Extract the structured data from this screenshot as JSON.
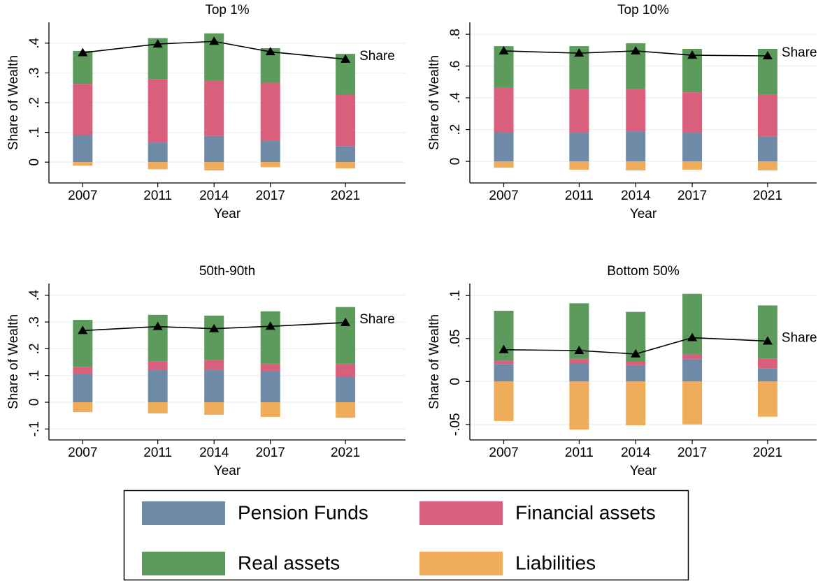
{
  "chart_data": [
    {
      "type": "bar",
      "stacked": true,
      "title": "Top 1%",
      "xlabel": "Year",
      "ylabel": "Share of Wealth",
      "x": [
        2007,
        2011,
        2014,
        2017,
        2021
      ],
      "xlim": [
        2005.2,
        2024.2
      ],
      "xticks": [
        2007,
        2011,
        2014,
        2017,
        2021
      ],
      "ylim": [
        -0.07,
        0.47
      ],
      "yticks": [
        0,
        {
          "value": 0.1,
          "label": ".1"
        },
        {
          "value": 0.2,
          "label": ".2"
        },
        {
          "value": 0.3,
          "label": ".3"
        },
        {
          "value": 0.4,
          "label": ".4"
        }
      ],
      "grid": true,
      "series": [
        {
          "name": "Pension Funds",
          "color": "#6e8aa7",
          "values": [
            0.092,
            0.066,
            0.088,
            0.073,
            0.054
          ]
        },
        {
          "name": "Financial assets",
          "color": "#da5f7d",
          "values": [
            0.171,
            0.213,
            0.187,
            0.194,
            0.173
          ]
        },
        {
          "name": "Real assets",
          "color": "#5c9b5c",
          "values": [
            0.111,
            0.138,
            0.158,
            0.116,
            0.137
          ]
        },
        {
          "name": "Liabilities",
          "color": "#efad5c",
          "values": [
            -0.012,
            -0.024,
            -0.028,
            -0.017,
            -0.021
          ]
        },
        {
          "name": "Share",
          "type": "line",
          "color": "#000000",
          "values": [
            0.368,
            0.397,
            0.406,
            0.371,
            0.346
          ]
        }
      ]
    },
    {
      "type": "bar",
      "stacked": true,
      "title": "Top 10%",
      "xlabel": "Year",
      "ylabel": "Share of Wealth",
      "x": [
        2007,
        2011,
        2014,
        2017,
        2021
      ],
      "xlim": [
        2005.2,
        2023.6
      ],
      "xticks": [
        2007,
        2011,
        2014,
        2017,
        2021
      ],
      "ylim": [
        -0.136,
        0.875
      ],
      "yticks": [
        0,
        {
          "value": 0.2,
          "label": ".2"
        },
        {
          "value": 0.4,
          "label": ".4"
        },
        {
          "value": 0.6,
          "label": ".6"
        },
        {
          "value": 0.8,
          "label": ".8"
        }
      ],
      "grid": true,
      "series": [
        {
          "name": "Pension Funds",
          "color": "#6e8aa7",
          "values": [
            0.185,
            0.18,
            0.189,
            0.18,
            0.158
          ]
        },
        {
          "name": "Financial assets",
          "color": "#da5f7d",
          "values": [
            0.281,
            0.277,
            0.268,
            0.255,
            0.264
          ]
        },
        {
          "name": "Real assets",
          "color": "#5c9b5c",
          "values": [
            0.259,
            0.268,
            0.286,
            0.273,
            0.286
          ]
        },
        {
          "name": "Liabilities",
          "color": "#efad5c",
          "values": [
            -0.04,
            -0.053,
            -0.057,
            -0.053,
            -0.057
          ]
        },
        {
          "name": "Share",
          "type": "line",
          "color": "#000000",
          "values": [
            0.695,
            0.681,
            0.695,
            0.668,
            0.664
          ]
        }
      ]
    },
    {
      "type": "bar",
      "stacked": true,
      "title": "50th-90th",
      "xlabel": "Year",
      "ylabel": "Share of Wealth",
      "x": [
        2007,
        2011,
        2014,
        2017,
        2021
      ],
      "xlim": [
        2005.2,
        2024.2
      ],
      "xticks": [
        2007,
        2011,
        2014,
        2017,
        2021
      ],
      "ylim": [
        -0.141,
        0.444
      ],
      "yticks": [
        {
          "value": -0.1,
          "label": "-.1"
        },
        0,
        {
          "value": 0.1,
          "label": ".1"
        },
        {
          "value": 0.2,
          "label": ".2"
        },
        {
          "value": 0.3,
          "label": ".3"
        },
        {
          "value": 0.4,
          "label": ".4"
        }
      ],
      "grid": true,
      "series": [
        {
          "name": "Pension Funds",
          "color": "#6e8aa7",
          "values": [
            0.107,
            0.12,
            0.12,
            0.115,
            0.094
          ]
        },
        {
          "name": "Financial assets",
          "color": "#da5f7d",
          "values": [
            0.024,
            0.032,
            0.039,
            0.029,
            0.05
          ]
        },
        {
          "name": "Real assets",
          "color": "#5c9b5c",
          "values": [
            0.177,
            0.175,
            0.165,
            0.196,
            0.212
          ]
        },
        {
          "name": "Liabilities",
          "color": "#efad5c",
          "values": [
            -0.037,
            -0.042,
            -0.047,
            -0.055,
            -0.058
          ]
        },
        {
          "name": "Share",
          "type": "line",
          "color": "#000000",
          "values": [
            0.268,
            0.283,
            0.275,
            0.284,
            0.298
          ]
        }
      ]
    },
    {
      "type": "bar",
      "stacked": true,
      "title": "Bottom 50%",
      "xlabel": "Year",
      "ylabel": "Share of Wealth",
      "x": [
        2007,
        2011,
        2014,
        2017,
        2021
      ],
      "xlim": [
        2005.2,
        2023.6
      ],
      "xticks": [
        2007,
        2011,
        2014,
        2017,
        2021
      ],
      "ylim": [
        -0.068,
        0.114
      ],
      "yticks": [
        {
          "value": -0.05,
          "label": "-.05"
        },
        0,
        {
          "value": 0.05,
          "label": ".05"
        },
        {
          "value": 0.1,
          "label": ".1"
        }
      ],
      "grid": true,
      "series": [
        {
          "name": "Pension Funds",
          "color": "#6e8aa7",
          "values": [
            0.0203,
            0.021,
            0.019,
            0.026,
            0.0155
          ]
        },
        {
          "name": "Financial assets",
          "color": "#da5f7d",
          "values": [
            0.004,
            0.005,
            0.004,
            0.006,
            0.011
          ]
        },
        {
          "name": "Real assets",
          "color": "#5c9b5c",
          "values": [
            0.058,
            0.065,
            0.058,
            0.07,
            0.062
          ]
        },
        {
          "name": "Liabilities",
          "color": "#efad5c",
          "values": [
            -0.046,
            -0.056,
            -0.051,
            -0.05,
            -0.041
          ]
        },
        {
          "name": "Share",
          "type": "line",
          "color": "#000000",
          "values": [
            0.037,
            0.036,
            0.032,
            0.051,
            0.047
          ]
        }
      ]
    }
  ]
}
